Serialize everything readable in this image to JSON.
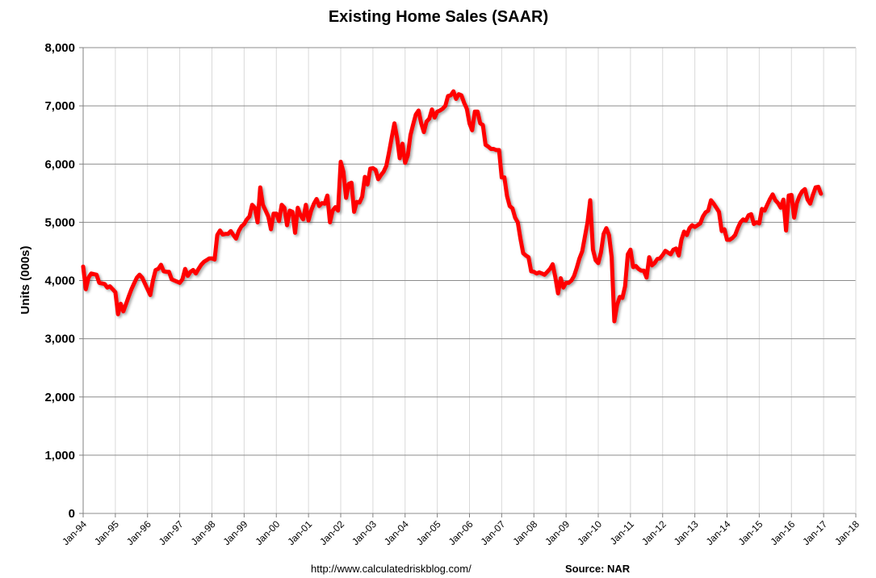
{
  "chart_data": {
    "type": "line",
    "title": "Existing Home Sales (SAAR)",
    "xlabel": "",
    "ylabel": "Units (000s)",
    "ylim": [
      0,
      8000
    ],
    "yticks": [
      0,
      1000,
      2000,
      3000,
      4000,
      5000,
      6000,
      7000,
      8000
    ],
    "ytick_labels": [
      "0",
      "1,000",
      "2,000",
      "3,000",
      "4,000",
      "5,000",
      "6,000",
      "7,000",
      "8,000"
    ],
    "xlim": [
      "Jan-94",
      "Jan-18"
    ],
    "xtick_labels": [
      "Jan-94",
      "Jan-95",
      "Jan-96",
      "Jan-97",
      "Jan-98",
      "Jan-99",
      "Jan-00",
      "Jan-01",
      "Jan-02",
      "Jan-03",
      "Jan-04",
      "Jan-05",
      "Jan-06",
      "Jan-07",
      "Jan-08",
      "Jan-09",
      "Jan-10",
      "Jan-11",
      "Jan-12",
      "Jan-13",
      "Jan-14",
      "Jan-15",
      "Jan-16",
      "Jan-17",
      "Jan-18"
    ],
    "grid": true,
    "line_color": "#FF0000",
    "monthly_values_by_year": {
      "1994": [
        4240,
        3850,
        4050,
        4120,
        4110,
        4100,
        3960,
        3950,
        3940,
        3880,
        3900,
        3850
      ],
      "1995": [
        3800,
        3420,
        3600,
        3470,
        3600,
        3730,
        3850,
        3950,
        4050,
        4100,
        4050,
        3950
      ],
      "1996": [
        3850,
        3750,
        4000,
        4180,
        4200,
        4270,
        4160,
        4150,
        4150,
        4020,
        4000,
        3980
      ],
      "1997": [
        3960,
        4020,
        4200,
        4080,
        4150,
        4180,
        4120,
        4200,
        4270,
        4320,
        4350,
        4380
      ],
      "1998": [
        4380,
        4360,
        4780,
        4860,
        4790,
        4800,
        4800,
        4850,
        4780,
        4720,
        4850,
        4930
      ],
      "1999": [
        4970,
        5050,
        5100,
        5300,
        5250,
        5000,
        5600,
        5300,
        5200,
        5100,
        4880,
        5150
      ],
      "2000": [
        5150,
        5020,
        5300,
        5250,
        4950,
        5200,
        5180,
        4820,
        5250,
        5120,
        5050,
        5300
      ],
      "2001": [
        5030,
        5200,
        5320,
        5400,
        5280,
        5330,
        5320,
        5460,
        5000,
        5200,
        5260,
        5200
      ],
      "2002": [
        6040,
        5870,
        5420,
        5660,
        5680,
        5180,
        5350,
        5340,
        5440,
        5780,
        5650,
        5920
      ],
      "2003": [
        5930,
        5900,
        5740,
        5810,
        5870,
        5970,
        6200,
        6450,
        6700,
        6450,
        6100,
        6350
      ],
      "2004": [
        6020,
        6150,
        6500,
        6680,
        6850,
        6920,
        6700,
        6550,
        6730,
        6780,
        6940,
        6800
      ],
      "2005": [
        6900,
        6920,
        6950,
        7000,
        7170,
        7180,
        7250,
        7120,
        7200,
        7180,
        7050,
        6950
      ],
      "2006": [
        6700,
        6580,
        6900,
        6900,
        6700,
        6670,
        6330,
        6300,
        6260,
        6260,
        6240,
        6240
      ],
      "2007": [
        5770,
        5770,
        5450,
        5280,
        5240,
        5080,
        5000,
        4720,
        4470,
        4430,
        4400,
        4160
      ],
      "2008": [
        4150,
        4120,
        4140,
        4120,
        4100,
        4150,
        4200,
        4280,
        4060,
        3780,
        4040,
        3880
      ],
      "2009": [
        3960,
        3960,
        4000,
        4080,
        4220,
        4380,
        4500,
        4750,
        5000,
        5380,
        4530,
        4350
      ],
      "2010": [
        4300,
        4480,
        4800,
        4900,
        4780,
        4400,
        3300,
        3580,
        3720,
        3700,
        3900,
        4450
      ],
      "2011": [
        4530,
        4230,
        4250,
        4200,
        4170,
        4170,
        4050,
        4400,
        4260,
        4300,
        4370,
        4380
      ],
      "2012": [
        4440,
        4510,
        4480,
        4450,
        4530,
        4550,
        4430,
        4700,
        4840,
        4780,
        4900,
        4950
      ],
      "2013": [
        4920,
        4950,
        4980,
        5100,
        5170,
        5200,
        5380,
        5320,
        5250,
        5180,
        4850,
        4880
      ],
      "2014": [
        4700,
        4700,
        4730,
        4780,
        4900,
        5000,
        5050,
        5030,
        5120,
        5140,
        4970,
        5000
      ],
      "2015": [
        4980,
        5230,
        5200,
        5300,
        5400,
        5480,
        5380,
        5330,
        5250,
        5390,
        4860,
        5460
      ],
      "2016": [
        5470,
        5080,
        5330,
        5450,
        5530,
        5570,
        5390,
        5320,
        5470,
        5600,
        5610,
        5490
      ]
    }
  },
  "footer": {
    "url": "http://www.calculatedriskblog.com/",
    "source": "Source: NAR"
  }
}
